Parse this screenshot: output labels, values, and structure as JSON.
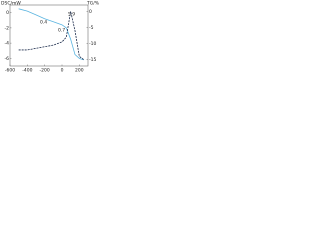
{
  "chart_data": {
    "type": "line",
    "y_label": "DSC/mW",
    "y2_label": "TG/%",
    "annotations": [
      "0.4",
      "0.7",
      "5.9"
    ],
    "x": [
      -500,
      -400,
      -300,
      -200,
      -100,
      0,
      50,
      100,
      150,
      200,
      250
    ],
    "xlim": [
      -600,
      300
    ],
    "xticks": [
      -600,
      -400,
      -200,
      0,
      200
    ],
    "ylim": [
      -7,
      1
    ],
    "yticks": [
      -6,
      -4,
      -2,
      0
    ],
    "y2lim": [
      -17,
      2
    ],
    "y2ticks": [
      -15,
      -10,
      -5,
      0
    ],
    "series": [
      {
        "name": "DSC",
        "color": "#5ab4e0",
        "values": [
          0.5,
          0.2,
          -0.3,
          -0.8,
          -1.2,
          -1.6,
          -2.0,
          -3.5,
          -5.5,
          -6.0,
          -6.2
        ]
      },
      {
        "name": "TG",
        "color": "#1a2a4a",
        "axis": "y2",
        "values": [
          -12,
          -12,
          -11.5,
          -11,
          -10.5,
          -9.5,
          -8,
          0,
          -6,
          -14,
          -15
        ]
      }
    ]
  }
}
